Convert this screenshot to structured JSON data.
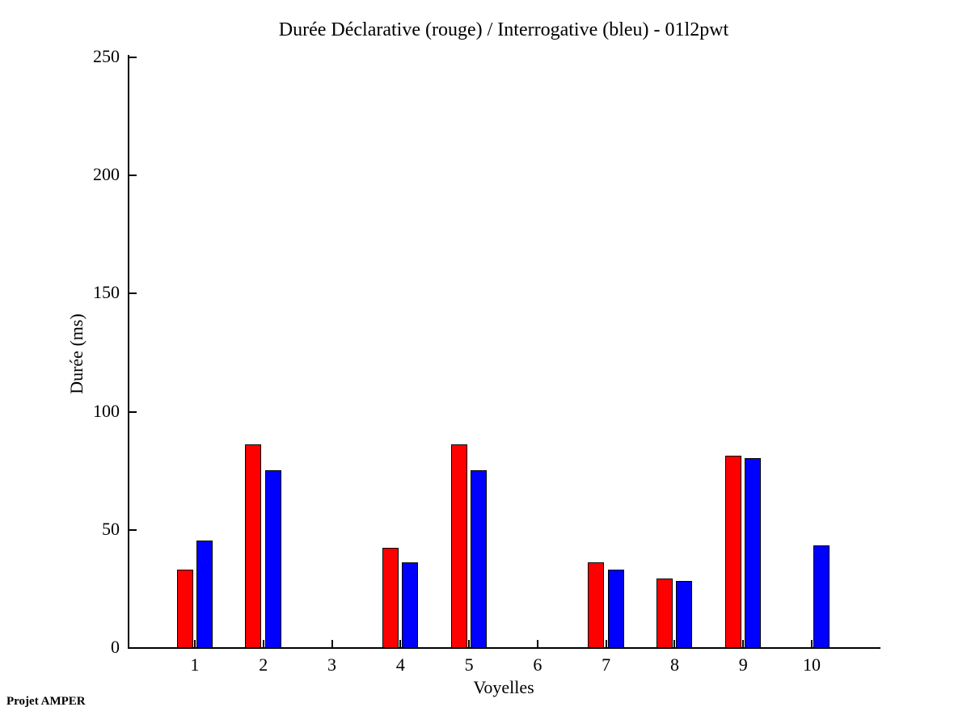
{
  "figure": {
    "background": "#ffffff",
    "footer": "Projet AMPER"
  },
  "chart_data": {
    "type": "bar",
    "title": "Durée Déclarative (rouge) / Interrogative (bleu) - 01l2pwt",
    "xlabel": "Voyelles",
    "ylabel": "Durée (ms)",
    "categories": [
      "1",
      "2",
      "3",
      "4",
      "5",
      "6",
      "7",
      "8",
      "9",
      "10"
    ],
    "series": [
      {
        "name": "Déclarative",
        "color": "#ff0000",
        "values": [
          33,
          86,
          0,
          42,
          86,
          0,
          36,
          29,
          81,
          0
        ]
      },
      {
        "name": "Interrogative",
        "color": "#0000ff",
        "values": [
          45,
          75,
          0,
          36,
          75,
          0,
          33,
          28,
          80,
          43
        ]
      }
    ],
    "ylim": [
      0,
      250
    ],
    "yticks": [
      0,
      50,
      100,
      150,
      200,
      250
    ],
    "grid": false,
    "legend_position": "none",
    "colors": {
      "declarative": "#ff0000",
      "interrogative": "#0000ff",
      "axis": "#000000"
    }
  }
}
